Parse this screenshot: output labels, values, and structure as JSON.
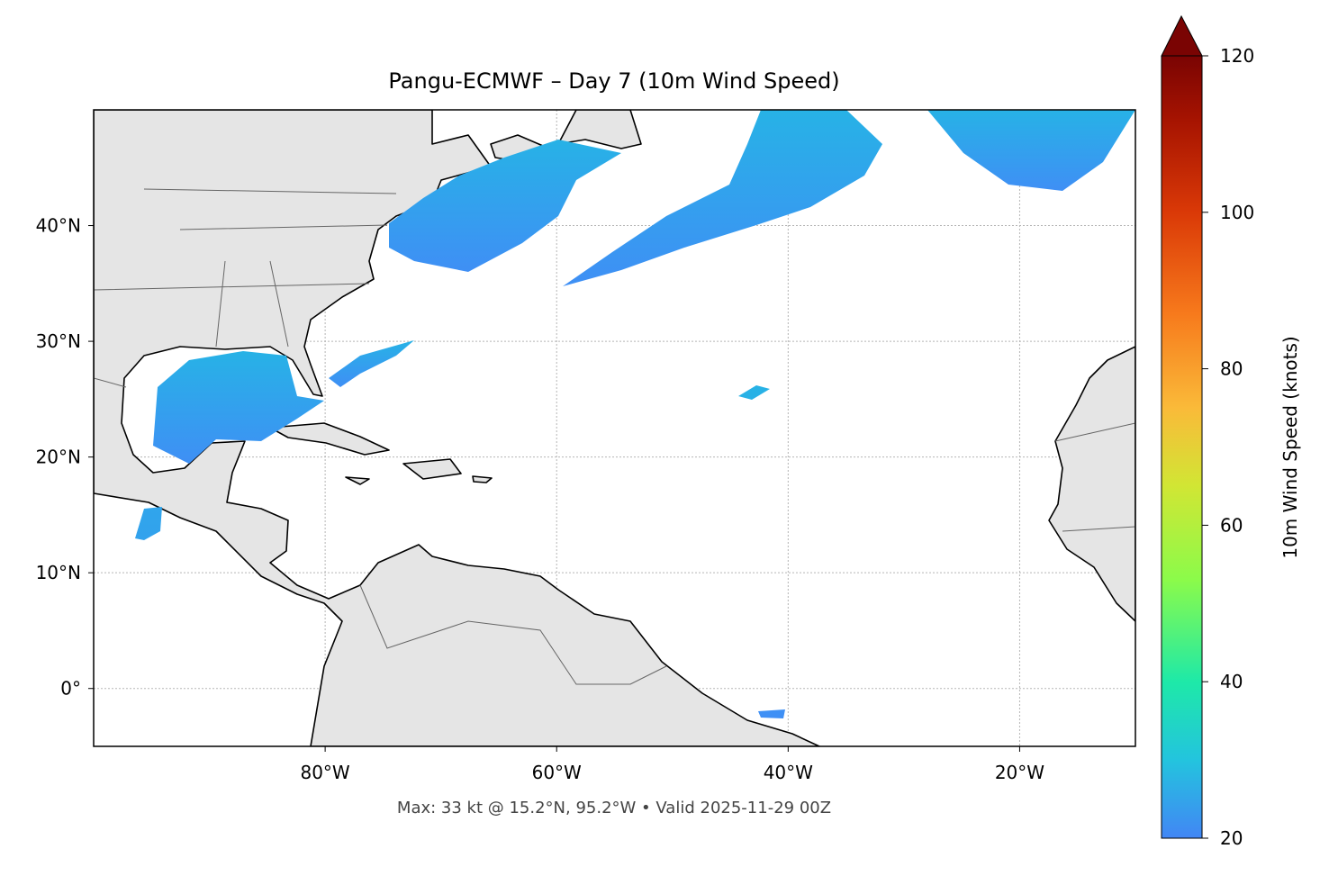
{
  "title": "Pangu-ECMWF – Day 7 (10m Wind Speed)",
  "footer": "Max: 33 kt @ 15.2°N, 95.2°W • Valid 2025-11-29 00Z",
  "map": {
    "xlim": [
      -100,
      -10
    ],
    "ylim": [
      -5,
      50
    ],
    "xticks": [
      {
        "value": -80,
        "label": "80°W"
      },
      {
        "value": -60,
        "label": "60°W"
      },
      {
        "value": -40,
        "label": "40°W"
      },
      {
        "value": -20,
        "label": "20°W"
      }
    ],
    "yticks": [
      {
        "value": 0,
        "label": "0°"
      },
      {
        "value": 10,
        "label": "10°N"
      },
      {
        "value": 20,
        "label": "20°N"
      },
      {
        "value": 30,
        "label": "30°N"
      },
      {
        "value": 40,
        "label": "40°N"
      }
    ],
    "grid": true
  },
  "colorbar": {
    "label": "10m Wind Speed (knots)",
    "lim": [
      20,
      120
    ],
    "ticks": [
      20,
      40,
      60,
      80,
      100,
      120
    ]
  }
}
